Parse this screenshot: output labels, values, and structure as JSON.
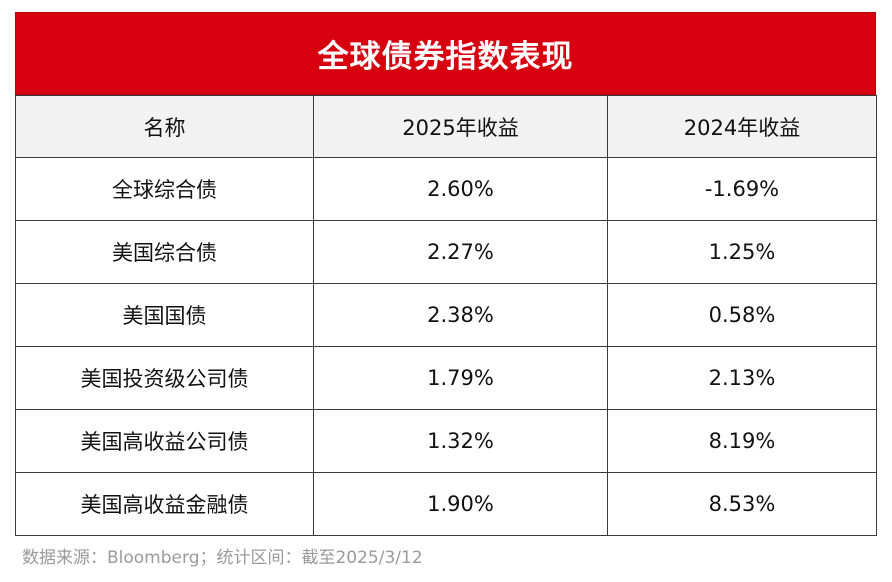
{
  "chart_data": {
    "type": "table",
    "title": "全球债券指数表现",
    "columns": [
      "名称",
      "2025年收益",
      "2024年收益"
    ],
    "rows": [
      {
        "name": "全球综合债",
        "y2025": "2.60%",
        "y2024": "-1.69%"
      },
      {
        "name": "美国综合债",
        "y2025": "2.27%",
        "y2024": "1.25%"
      },
      {
        "name": "美国国债",
        "y2025": "2.38%",
        "y2024": "0.58%"
      },
      {
        "name": "美国投资级公司债",
        "y2025": "1.79%",
        "y2024": "2.13%"
      },
      {
        "name": "美国高收益公司债",
        "y2025": "1.32%",
        "y2024": "8.19%"
      },
      {
        "name": "美国高收益金融债",
        "y2025": "1.90%",
        "y2024": "8.53%"
      }
    ],
    "source": "数据来源：Bloomberg；统计区间：截至2025/3/12"
  },
  "colors": {
    "title_background": "#d7000f",
    "title_text": "#ffffff",
    "header_background": "#f2f2f2",
    "source_text": "#9a9a9a"
  }
}
